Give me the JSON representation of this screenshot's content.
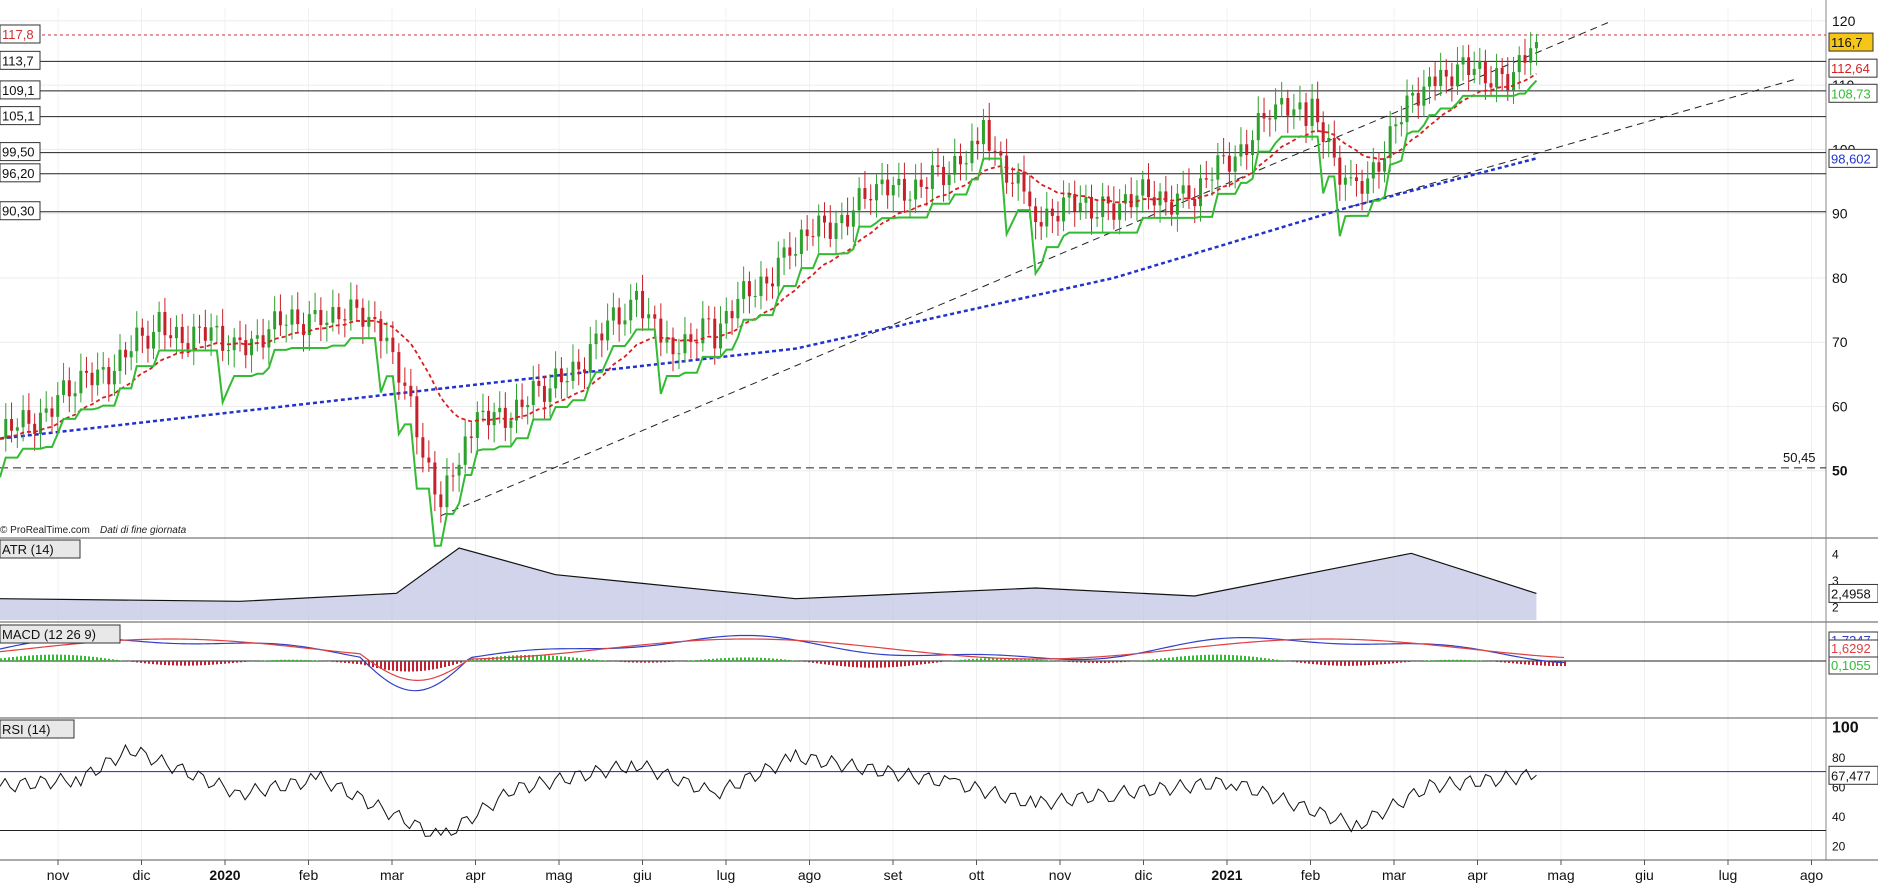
{
  "colors": {
    "price_up": "#2ea02e",
    "price_down": "#c8202a",
    "sar_green": "#33bb33",
    "sar_red": "#e05555",
    "ma_fast": "#d62020",
    "ma_slow": "#2233cc",
    "atr_fill": "#c3c6e4",
    "macd_line": "#3040c8",
    "signal_line": "#e04040",
    "hist_pos": "#33bb33",
    "hist_neg": "#c02030",
    "rsi_ref": "#3040c8",
    "last_price_bg": "#f5c518"
  },
  "credit": "© ProRealTime.com",
  "credit_note": "Dati di fine giornata",
  "left_levels": [
    "117,8",
    "113,7",
    "109,1",
    "105,1",
    "99,50",
    "96,20",
    "90,30"
  ],
  "level_50_label": "50,45",
  "price_axis_ticks": [
    "120",
    "110",
    "100",
    "90",
    "80",
    "70",
    "60",
    "50"
  ],
  "last_price": "116,7",
  "ma_fast_value": "112,64",
  "sar_value": "108,73",
  "ma_slow_value": "98,602",
  "x_labels": [
    "nov",
    "dic",
    "2020",
    "feb",
    "mar",
    "apr",
    "mag",
    "giu",
    "lug",
    "ago",
    "set",
    "ott",
    "nov",
    "dic",
    "2021",
    "feb",
    "mar",
    "apr",
    "mag",
    "giu",
    "lug",
    "ago"
  ],
  "atr": {
    "title": "ATR (14)",
    "ticks": [
      "4",
      "3",
      "2"
    ],
    "value": "2,4958"
  },
  "macd": {
    "title": "MACD (12 26 9)",
    "macd_value": "1,7347",
    "signal_value": "1,6292",
    "hist_value": "0,1055"
  },
  "rsi": {
    "title": "RSI (14)",
    "ticks": [
      "100",
      "80",
      "60",
      "40",
      "20"
    ],
    "value": "67,477"
  },
  "chart_data": {
    "type": "line",
    "title": "",
    "price": {
      "x": [
        "2019-10-01",
        "2019-11-01",
        "2019-12-01",
        "2020-01-01",
        "2020-02-01",
        "2020-02-24",
        "2020-03-18",
        "2020-04-01",
        "2020-05-01",
        "2020-06-01",
        "2020-06-15",
        "2020-07-01",
        "2020-08-01",
        "2020-09-01",
        "2020-10-01",
        "2020-10-12",
        "2020-11-01",
        "2020-12-01",
        "2021-01-01",
        "2021-02-01",
        "2021-02-15",
        "2021-03-04",
        "2021-04-01",
        "2021-05-01",
        "2021-05-12"
      ],
      "close": [
        55,
        63,
        72,
        70,
        75,
        73,
        45,
        57,
        63,
        77,
        70,
        72,
        85,
        93,
        96,
        103,
        90,
        92,
        93,
        106,
        105,
        93,
        112,
        112,
        116.7
      ]
    },
    "horizontal_levels": [
      117.8,
      113.7,
      109.1,
      105.1,
      99.5,
      96.2,
      90.3,
      50.45
    ],
    "ma_slow": {
      "x": [
        "2019-10-01",
        "2020-03-01",
        "2020-08-01",
        "2020-12-01",
        "2021-03-01",
        "2021-05-12"
      ],
      "y": [
        55,
        62,
        69,
        80,
        91,
        98.602
      ]
    },
    "ma_fast_last": 112.64,
    "sar_last": 108.73,
    "ylim": [
      40,
      122
    ],
    "xlim": [
      "2019-10-01",
      "2021-08-31"
    ],
    "atr": {
      "x": [
        "2019-10-01",
        "2020-01-01",
        "2020-03-01",
        "2020-03-25",
        "2020-05-01",
        "2020-07-01",
        "2020-08-01",
        "2020-11-01",
        "2021-01-01",
        "2021-03-25",
        "2021-05-12"
      ],
      "y": [
        2.3,
        2.2,
        2.5,
        4.2,
        3.2,
        2.6,
        2.3,
        2.7,
        2.4,
        4.0,
        2.4958
      ],
      "ylim": [
        1.5,
        4.5
      ]
    },
    "macd": {
      "macd_last": 1.7347,
      "signal_last": 1.6292,
      "hist_last": 0.1055
    },
    "rsi": {
      "x": [
        "2019-10-01",
        "2019-11-01",
        "2019-11-20",
        "2020-01-01",
        "2020-02-01",
        "2020-03-18",
        "2020-04-15",
        "2020-06-01",
        "2020-07-01",
        "2020-08-01",
        "2020-10-01",
        "2020-11-01",
        "2020-12-01",
        "2021-01-15",
        "2021-03-04",
        "2021-04-01",
        "2021-05-12"
      ],
      "y": [
        60,
        65,
        85,
        55,
        65,
        25,
        58,
        75,
        55,
        80,
        62,
        48,
        55,
        63,
        33,
        60,
        67.477
      ],
      "levels": [
        70,
        30
      ],
      "ylim": [
        10,
        105
      ]
    }
  }
}
